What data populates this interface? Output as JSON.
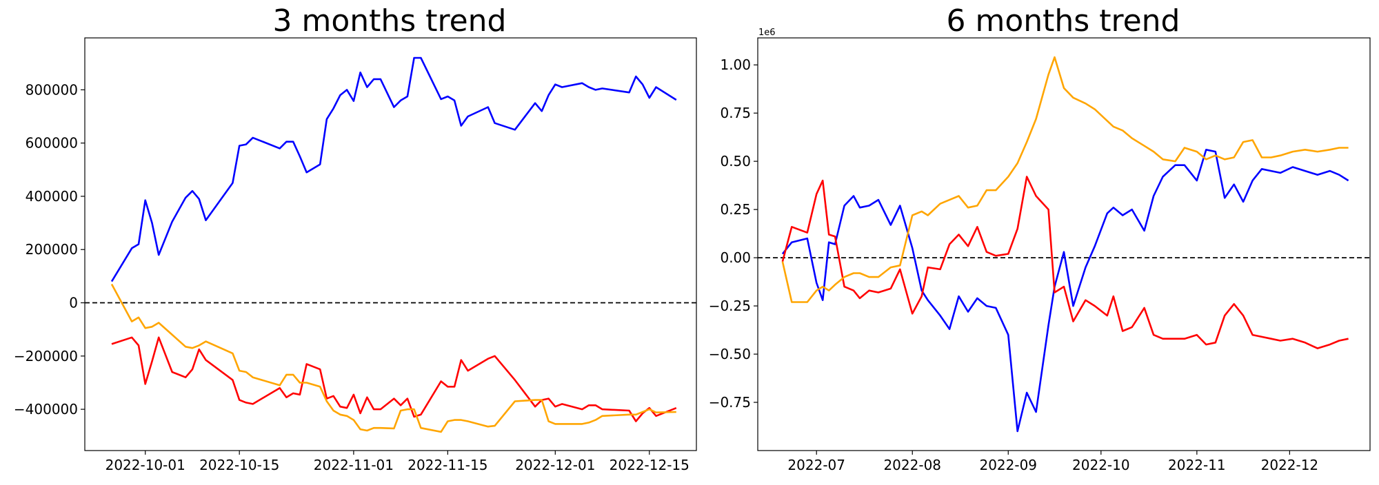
{
  "chart_data": [
    {
      "type": "line",
      "title": "3 months trend",
      "xlabel": "",
      "ylabel": "",
      "x_ticks": [
        "2022-10-01",
        "2022-10-15",
        "2022-11-01",
        "2022-11-15",
        "2022-12-01",
        "2022-12-15"
      ],
      "y_ticks": [
        "−400000",
        "−200000",
        "0",
        "200000",
        "400000",
        "600000",
        "800000"
      ],
      "xlim": [
        "2022-09-22",
        "2022-12-22"
      ],
      "ylim": [
        -555000,
        995000
      ],
      "reference_line": {
        "y": 0,
        "style": "dashed",
        "color": "#000000"
      },
      "grid": false,
      "x": [
        "2022-09-26",
        "2022-09-29",
        "2022-09-30",
        "2022-10-01",
        "2022-10-02",
        "2022-10-03",
        "2022-10-05",
        "2022-10-07",
        "2022-10-08",
        "2022-10-09",
        "2022-10-10",
        "2022-10-14",
        "2022-10-15",
        "2022-10-16",
        "2022-10-17",
        "2022-10-21",
        "2022-10-22",
        "2022-10-23",
        "2022-10-24",
        "2022-10-25",
        "2022-10-27",
        "2022-10-28",
        "2022-10-29",
        "2022-10-30",
        "2022-10-31",
        "2022-11-01",
        "2022-11-02",
        "2022-11-03",
        "2022-11-04",
        "2022-11-05",
        "2022-11-07",
        "2022-11-08",
        "2022-11-09",
        "2022-11-10",
        "2022-11-11",
        "2022-11-14",
        "2022-11-15",
        "2022-11-16",
        "2022-11-17",
        "2022-11-18",
        "2022-11-21",
        "2022-11-22",
        "2022-11-25",
        "2022-11-28",
        "2022-11-29",
        "2022-11-30",
        "2022-12-01",
        "2022-12-02",
        "2022-12-05",
        "2022-12-06",
        "2022-12-07",
        "2022-12-08",
        "2022-12-12",
        "2022-12-13",
        "2022-12-14",
        "2022-12-15",
        "2022-12-16",
        "2022-12-19"
      ],
      "series": [
        {
          "color": "#0000ff",
          "values": [
            80000,
            205000,
            220000,
            385000,
            300000,
            180000,
            305000,
            395000,
            420000,
            390000,
            310000,
            450000,
            590000,
            595000,
            620000,
            580000,
            605000,
            605000,
            550000,
            490000,
            520000,
            690000,
            730000,
            780000,
            800000,
            758000,
            865000,
            810000,
            840000,
            840000,
            735000,
            760000,
            775000,
            920000,
            920000,
            765000,
            775000,
            760000,
            665000,
            700000,
            735000,
            675000,
            650000,
            750000,
            720000,
            780000,
            820000,
            810000,
            825000,
            810000,
            800000,
            805000,
            790000,
            850000,
            820000,
            770000,
            810000,
            762000
          ]
        },
        {
          "color": "#ff0000",
          "values": [
            -155000,
            -130000,
            -160000,
            -305000,
            -220000,
            -130000,
            -260000,
            -280000,
            -250000,
            -175000,
            -215000,
            -290000,
            -365000,
            -375000,
            -380000,
            -320000,
            -355000,
            -340000,
            -345000,
            -230000,
            -250000,
            -360000,
            -350000,
            -390000,
            -395000,
            -345000,
            -415000,
            -355000,
            -400000,
            -400000,
            -360000,
            -385000,
            -360000,
            -428000,
            -420000,
            -295000,
            -315000,
            -315000,
            -215000,
            -255000,
            -210000,
            -200000,
            -290000,
            -390000,
            -365000,
            -360000,
            -390000,
            -380000,
            -400000,
            -385000,
            -385000,
            -400000,
            -405000,
            -445000,
            -415000,
            -395000,
            -425000,
            -395000
          ]
        },
        {
          "color": "#ffa500",
          "values": [
            70000,
            -70000,
            -55000,
            -95000,
            -90000,
            -75000,
            -120000,
            -165000,
            -170000,
            -160000,
            -145000,
            -190000,
            -255000,
            -260000,
            -280000,
            -310000,
            -270000,
            -270000,
            -300000,
            -300000,
            -315000,
            -370000,
            -405000,
            -420000,
            -425000,
            -440000,
            -475000,
            -480000,
            -470000,
            -470000,
            -472000,
            -405000,
            -400000,
            -400000,
            -470000,
            -485000,
            -445000,
            -440000,
            -440000,
            -445000,
            -465000,
            -462000,
            -370000,
            -365000,
            -365000,
            -445000,
            -455000,
            -455000,
            -455000,
            -450000,
            -440000,
            -425000,
            -420000,
            -420000,
            -410000,
            -400000,
            -412000,
            -410000
          ]
        }
      ]
    },
    {
      "type": "line",
      "title": "6 months trend",
      "xlabel": "",
      "ylabel": "",
      "offset_text": "1e6",
      "x_ticks": [
        "2022-07",
        "2022-08",
        "2022-09",
        "2022-10",
        "2022-11",
        "2022-12"
      ],
      "y_ticks": [
        "−0.75",
        "−0.50",
        "−0.25",
        "0.00",
        "0.25",
        "0.50",
        "0.75",
        "1.00"
      ],
      "xlim": [
        "2022-06-12",
        "2022-12-27"
      ],
      "ylim": [
        -1.0,
        1.14
      ],
      "reference_line": {
        "y": 0,
        "style": "dashed",
        "color": "#000000"
      },
      "grid": false,
      "x": [
        "2022-06-20",
        "2022-06-23",
        "2022-06-28",
        "2022-07-01",
        "2022-07-03",
        "2022-07-05",
        "2022-07-07",
        "2022-07-10",
        "2022-07-13",
        "2022-07-15",
        "2022-07-18",
        "2022-07-21",
        "2022-07-25",
        "2022-07-28",
        "2022-08-01",
        "2022-08-04",
        "2022-08-06",
        "2022-08-10",
        "2022-08-13",
        "2022-08-16",
        "2022-08-19",
        "2022-08-22",
        "2022-08-25",
        "2022-08-28",
        "2022-09-01",
        "2022-09-04",
        "2022-09-07",
        "2022-09-10",
        "2022-09-14",
        "2022-09-16",
        "2022-09-19",
        "2022-09-22",
        "2022-09-26",
        "2022-09-29",
        "2022-10-03",
        "2022-10-05",
        "2022-10-08",
        "2022-10-11",
        "2022-10-15",
        "2022-10-18",
        "2022-10-21",
        "2022-10-25",
        "2022-10-28",
        "2022-11-01",
        "2022-11-04",
        "2022-11-07",
        "2022-11-10",
        "2022-11-13",
        "2022-11-16",
        "2022-11-19",
        "2022-11-22",
        "2022-11-25",
        "2022-11-28",
        "2022-12-02",
        "2022-12-06",
        "2022-12-10",
        "2022-12-14",
        "2022-12-17",
        "2022-12-20"
      ],
      "series": [
        {
          "color": "#0000ff",
          "values": [
            0.02,
            0.08,
            0.1,
            -0.13,
            -0.22,
            0.08,
            0.07,
            0.27,
            0.32,
            0.26,
            0.27,
            0.3,
            0.17,
            0.27,
            0.05,
            -0.17,
            -0.22,
            -0.3,
            -0.37,
            -0.2,
            -0.28,
            -0.21,
            -0.25,
            -0.26,
            -0.4,
            -0.9,
            -0.7,
            -0.8,
            -0.35,
            -0.15,
            0.03,
            -0.25,
            -0.05,
            0.06,
            0.23,
            0.26,
            0.22,
            0.25,
            0.14,
            0.32,
            0.42,
            0.48,
            0.48,
            0.4,
            0.56,
            0.55,
            0.31,
            0.38,
            0.29,
            0.4,
            0.46,
            0.45,
            0.44,
            0.47,
            0.45,
            0.43,
            0.45,
            0.43,
            0.4
          ]
        },
        {
          "color": "#ff0000",
          "values": [
            -0.02,
            0.16,
            0.13,
            0.33,
            0.4,
            0.12,
            0.11,
            -0.15,
            -0.17,
            -0.21,
            -0.17,
            -0.18,
            -0.16,
            -0.06,
            -0.29,
            -0.2,
            -0.05,
            -0.06,
            0.07,
            0.12,
            0.06,
            0.16,
            0.03,
            0.01,
            0.02,
            0.15,
            0.42,
            0.32,
            0.25,
            -0.18,
            -0.15,
            -0.33,
            -0.22,
            -0.25,
            -0.3,
            -0.2,
            -0.38,
            -0.36,
            -0.26,
            -0.4,
            -0.42,
            -0.42,
            -0.42,
            -0.4,
            -0.45,
            -0.44,
            -0.3,
            -0.24,
            -0.3,
            -0.4,
            -0.41,
            -0.42,
            -0.43,
            -0.42,
            -0.44,
            -0.47,
            -0.45,
            -0.43,
            -0.42
          ]
        },
        {
          "color": "#ffa500",
          "values": [
            -0.02,
            -0.23,
            -0.23,
            -0.17,
            -0.15,
            -0.17,
            -0.14,
            -0.1,
            -0.08,
            -0.08,
            -0.1,
            -0.1,
            -0.05,
            -0.04,
            0.22,
            0.24,
            0.22,
            0.28,
            0.3,
            0.32,
            0.26,
            0.27,
            0.35,
            0.35,
            0.42,
            0.49,
            0.6,
            0.72,
            0.95,
            1.04,
            0.88,
            0.83,
            0.8,
            0.77,
            0.71,
            0.68,
            0.66,
            0.62,
            0.58,
            0.55,
            0.51,
            0.5,
            0.57,
            0.55,
            0.51,
            0.53,
            0.51,
            0.52,
            0.6,
            0.61,
            0.52,
            0.52,
            0.53,
            0.55,
            0.56,
            0.55,
            0.56,
            0.57,
            0.57
          ]
        }
      ]
    }
  ]
}
